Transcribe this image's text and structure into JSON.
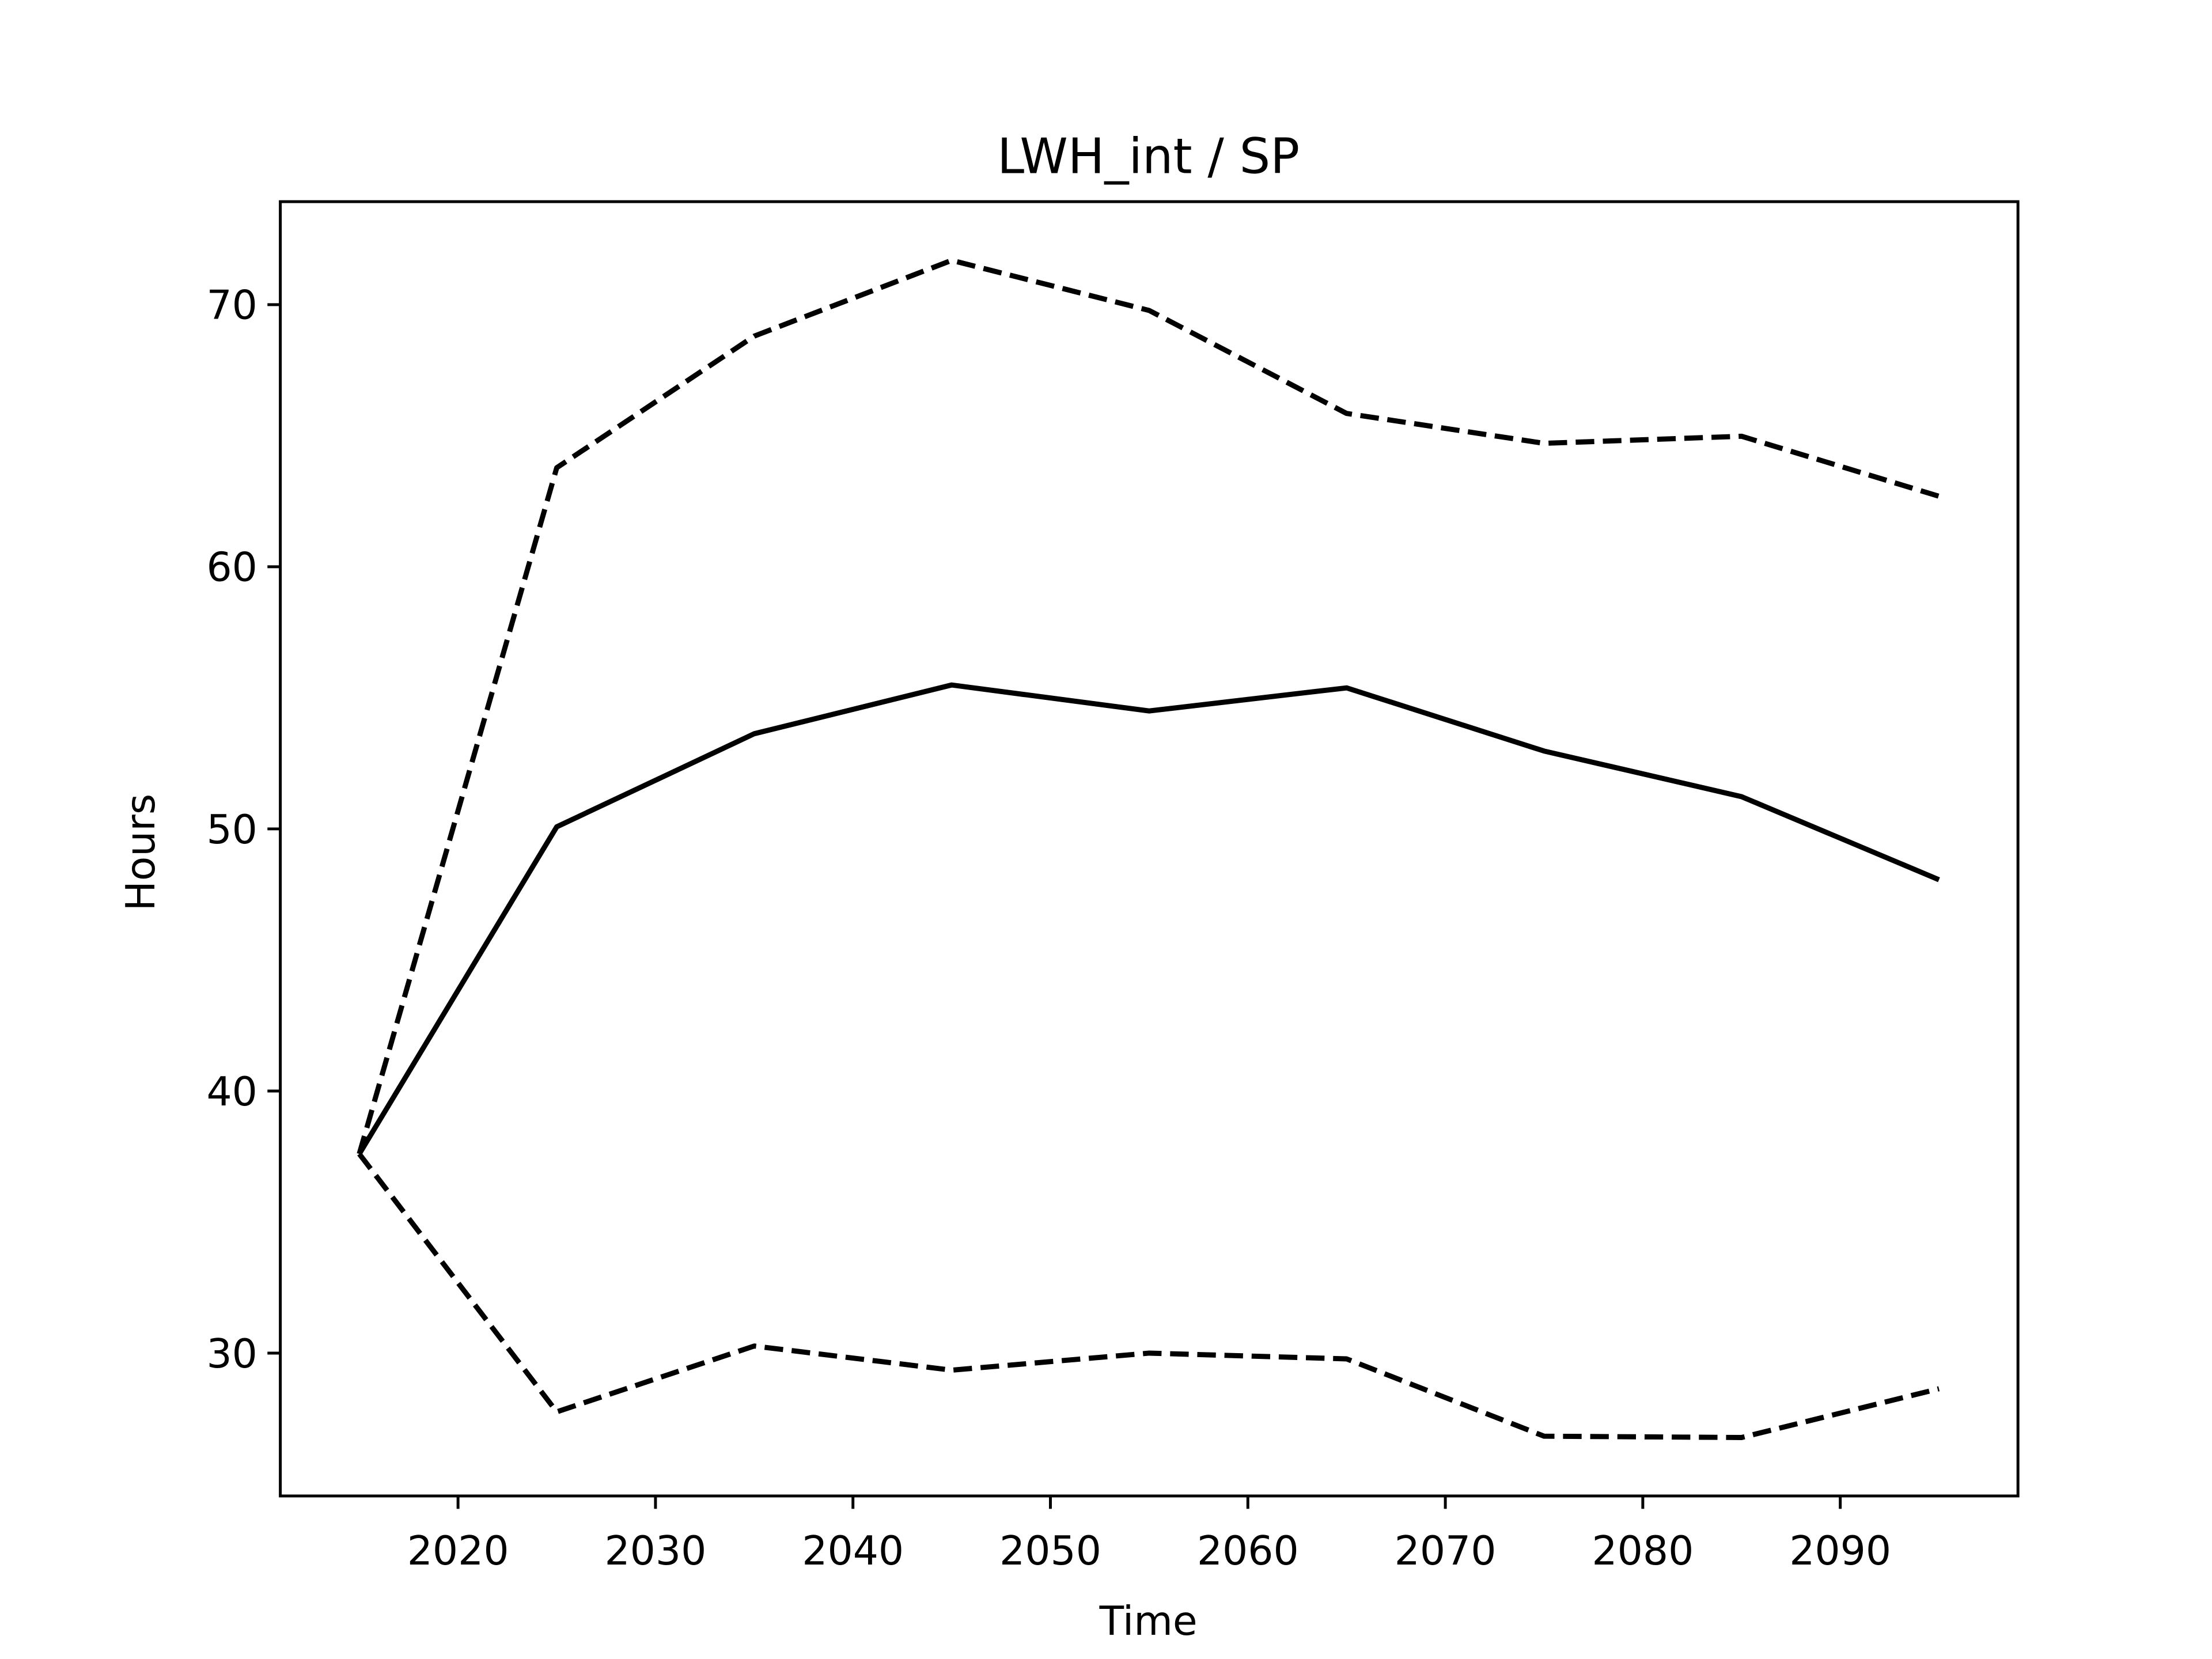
{
  "chart_data": {
    "type": "line",
    "title": "LWH_int / SP",
    "xlabel": "Time",
    "ylabel": "Hours",
    "x": [
      2015,
      2025,
      2035,
      2045,
      2055,
      2065,
      2075,
      2085,
      2095
    ],
    "series": [
      {
        "color": "#000000",
        "linestyle": "solid",
        "values": [
          37.6,
          50.08,
          53.63,
          55.49,
          54.5,
          55.38,
          52.97,
          51.23,
          48.06
        ]
      },
      {
        "color": "#000000",
        "linestyle": "dashed",
        "values": [
          37.6,
          63.78,
          68.8,
          71.69,
          69.78,
          65.85,
          64.71,
          64.98,
          62.69
        ]
      },
      {
        "color": "#000000",
        "linestyle": "dashed",
        "values": [
          37.6,
          27.76,
          30.27,
          29.35,
          30.0,
          29.78,
          26.83,
          26.78,
          28.64
        ]
      }
    ],
    "xlim": [
      2011,
      2099
    ],
    "xticks": [
      2020,
      2030,
      2040,
      2050,
      2060,
      2070,
      2080,
      2090
    ],
    "ylim": [
      24.55,
      73.93
    ],
    "yticks": [
      30,
      40,
      50,
      60,
      70
    ],
    "grid": false
  }
}
